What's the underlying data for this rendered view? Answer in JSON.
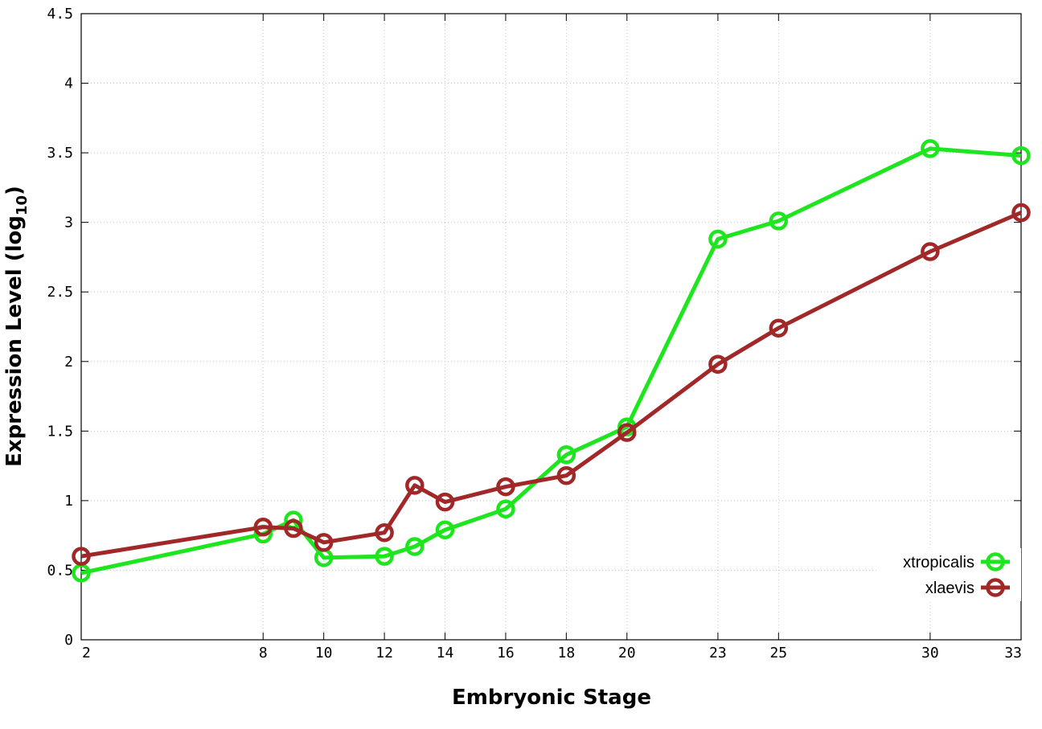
{
  "chart_data": {
    "type": "line",
    "xlabel": "Embryonic Stage",
    "ylabel_main": "Expression Level (log",
    "ylabel_sub": "10",
    "ylabel_end": ")",
    "x_ticks": [
      "2",
      "8",
      "10",
      "12",
      "14",
      "16",
      "18",
      "20",
      "23",
      "25",
      "30",
      "33"
    ],
    "y_ticks": [
      "0",
      "0.5",
      "1",
      "1.5",
      "2",
      "2.5",
      "3",
      "3.5",
      "4",
      "4.5"
    ],
    "ylim": [
      0,
      4.5
    ],
    "grid": true,
    "legend_position": "bottom-right",
    "series": [
      {
        "name": "xtropicalis",
        "color": "#1ee61e",
        "x": [
          2,
          8,
          9,
          10,
          12,
          13,
          14,
          16,
          18,
          20,
          23,
          25,
          30,
          33
        ],
        "values": [
          0.48,
          0.76,
          0.86,
          0.59,
          0.6,
          0.67,
          0.79,
          0.94,
          1.33,
          1.53,
          2.88,
          3.01,
          3.53,
          3.48
        ]
      },
      {
        "name": "xlaevis",
        "color": "#a02828",
        "x": [
          2,
          8,
          9,
          10,
          12,
          13,
          14,
          16,
          18,
          20,
          23,
          25,
          30,
          33
        ],
        "values": [
          0.6,
          0.81,
          0.8,
          0.7,
          0.77,
          1.11,
          0.99,
          1.1,
          1.18,
          1.49,
          1.98,
          2.24,
          2.79,
          3.07
        ]
      }
    ]
  }
}
